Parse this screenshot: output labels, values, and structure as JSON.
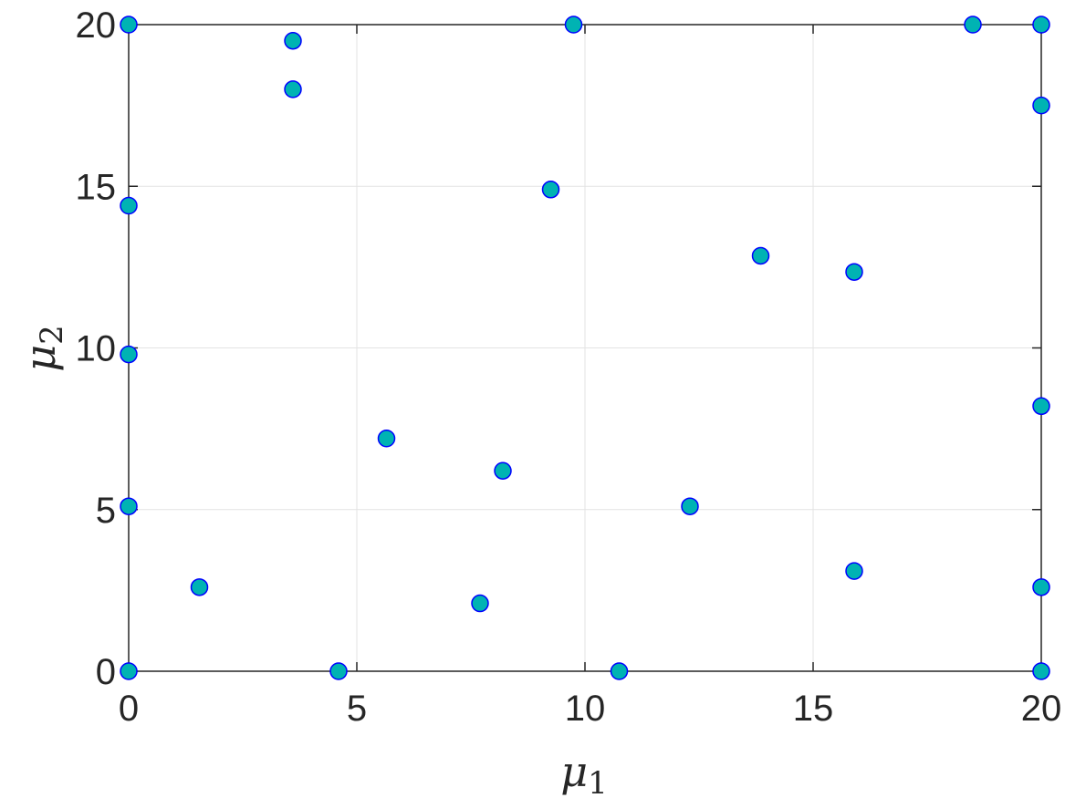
{
  "chart_data": {
    "type": "scatter",
    "title": "",
    "xlabel": "μ",
    "xlabel_sub": "1",
    "ylabel": "μ",
    "ylabel_sub": "2",
    "xlim": [
      0,
      20
    ],
    "ylim": [
      0,
      20
    ],
    "x_ticks": [
      "0",
      "5",
      "10",
      "15",
      "20"
    ],
    "y_ticks": [
      "0",
      "5",
      "10",
      "15",
      "20"
    ],
    "grid": true,
    "marker_fill": "#00b3b3",
    "marker_edge": "#0000ff",
    "points": [
      {
        "x": 0,
        "y": 20
      },
      {
        "x": 0,
        "y": 14.4
      },
      {
        "x": 0,
        "y": 9.8
      },
      {
        "x": 0,
        "y": 5.1
      },
      {
        "x": 0,
        "y": 0
      },
      {
        "x": 1.55,
        "y": 2.6
      },
      {
        "x": 3.6,
        "y": 19.5
      },
      {
        "x": 3.6,
        "y": 18.0
      },
      {
        "x": 4.6,
        "y": 0
      },
      {
        "x": 5.65,
        "y": 7.2
      },
      {
        "x": 7.7,
        "y": 2.1
      },
      {
        "x": 8.2,
        "y": 6.2
      },
      {
        "x": 9.25,
        "y": 14.9
      },
      {
        "x": 9.75,
        "y": 20
      },
      {
        "x": 10.75,
        "y": 0
      },
      {
        "x": 12.3,
        "y": 5.1
      },
      {
        "x": 13.85,
        "y": 12.85
      },
      {
        "x": 15.9,
        "y": 12.35
      },
      {
        "x": 15.9,
        "y": 3.1
      },
      {
        "x": 18.5,
        "y": 20
      },
      {
        "x": 20,
        "y": 20
      },
      {
        "x": 20,
        "y": 17.5
      },
      {
        "x": 20,
        "y": 8.2
      },
      {
        "x": 20,
        "y": 2.6
      },
      {
        "x": 20,
        "y": 0
      }
    ]
  }
}
